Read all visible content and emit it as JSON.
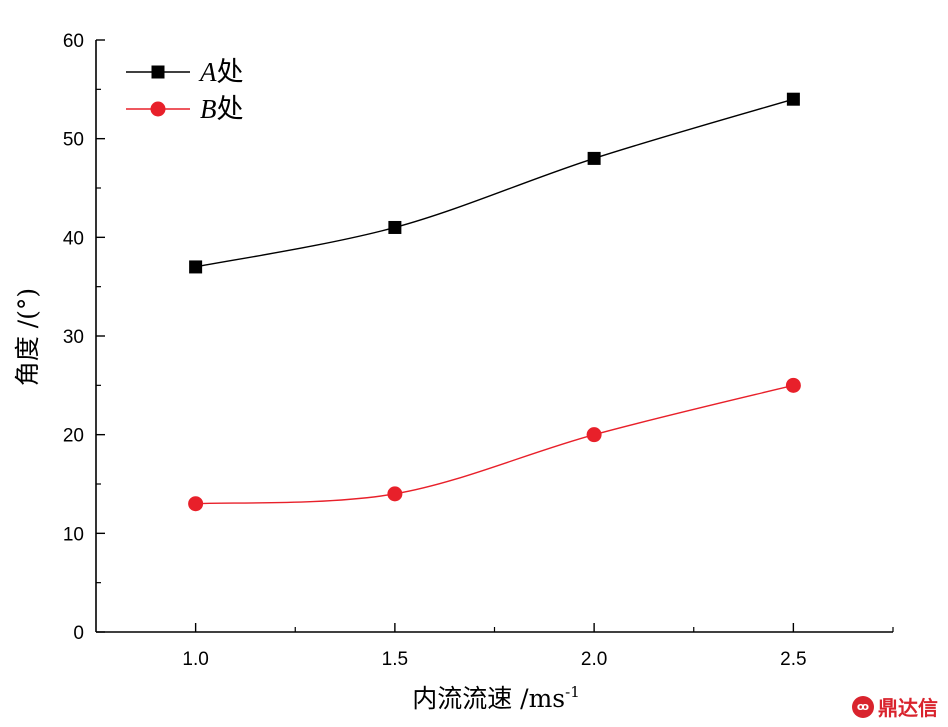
{
  "chart_data": {
    "type": "line",
    "title": "",
    "xlabel": "内流流速 /ms",
    "xlabel_sup": "-1",
    "ylabel": "角度 /(°)",
    "x": [
      1.0,
      1.5,
      2.0,
      2.5
    ],
    "x_ticks": [
      "1.0",
      "1.5",
      "2.0",
      "2.5"
    ],
    "xlim": [
      0.75,
      2.75
    ],
    "ylim": [
      0,
      60
    ],
    "y_ticks": [
      "0",
      "10",
      "20",
      "30",
      "40",
      "50",
      "60"
    ],
    "grid": false,
    "legend_position": "top-left",
    "series": [
      {
        "name_italic": "A",
        "name_rest": "处",
        "values": [
          37,
          41,
          48,
          54
        ],
        "marker": "square",
        "color": "#000000"
      },
      {
        "name_italic": "B",
        "name_rest": "处",
        "values": [
          13,
          14,
          20,
          25
        ],
        "marker": "circle",
        "color": "#e8202a"
      }
    ]
  },
  "watermark": {
    "logo": "ꝏ",
    "text": "鼎达信"
  }
}
